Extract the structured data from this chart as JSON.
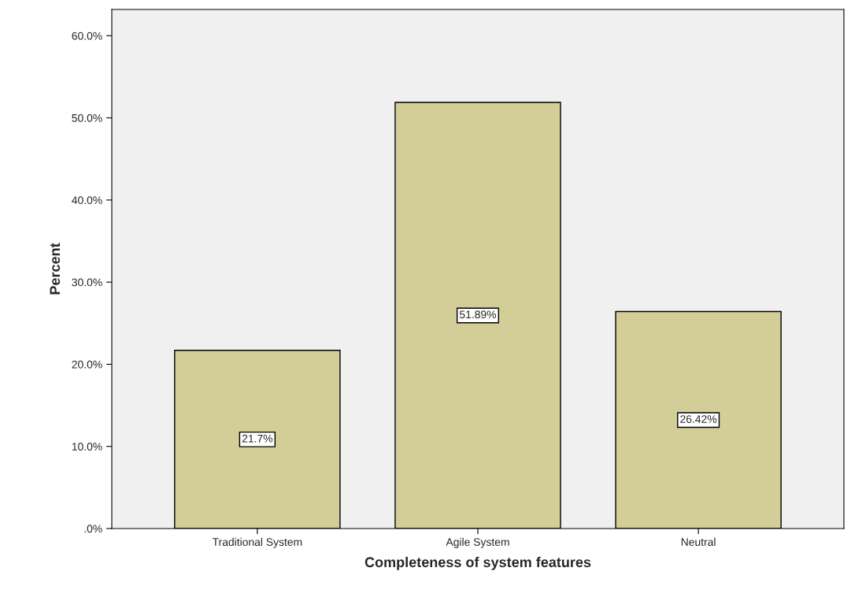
{
  "chart_data": {
    "type": "bar",
    "xlabel": "Completeness of system features",
    "ylabel": "Percent",
    "categories": [
      "Traditional System",
      "Agile System",
      "Neutral"
    ],
    "values": [
      21.7,
      51.89,
      26.42
    ],
    "value_labels": [
      "21.7%",
      "51.89%",
      "26.42%"
    ],
    "color": "#d3ce97",
    "ylim": [
      0,
      63.2
    ],
    "yticks": [
      {
        "value": 0,
        "label": ".0%"
      },
      {
        "value": 10,
        "label": "10.0%"
      },
      {
        "value": 20,
        "label": "20.0%"
      },
      {
        "value": 30,
        "label": "30.0%"
      },
      {
        "value": 40,
        "label": "40.0%"
      },
      {
        "value": 50,
        "label": "50.0%"
      },
      {
        "value": 60,
        "label": "60.0%"
      }
    ],
    "grid": false,
    "legend": false
  }
}
